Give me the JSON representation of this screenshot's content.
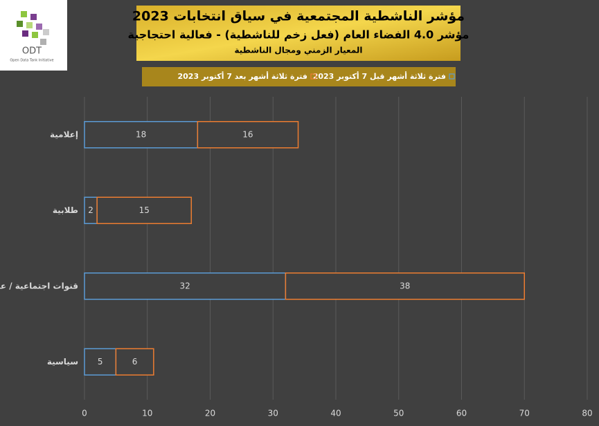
{
  "logo": {
    "name": "ODT",
    "tagline": "Open Data Tank Initiative"
  },
  "chart_data": {
    "type": "stacked-barh",
    "title": "مؤشر الناشطية المجتمعية في سياق انتخابات 2023",
    "subtitle": [
      "مؤشر 4.0 الفضاء العام (فعل زخم للناشطية) - فعالية احتجاجية",
      "المعيار الزمني ومجال الناشطية"
    ],
    "categories": [
      "إعلامية",
      "طلابية",
      "قنوات اجتماعية / عمالية",
      "سياسية"
    ],
    "series": [
      {
        "name": "فترة ثلاثة أشهر قبل 7 أكتوبر 2023",
        "color": "#5b9bd5",
        "values": [
          18,
          2,
          32,
          5
        ]
      },
      {
        "name": "فترة ثلاثة أشهر بعد 7 أكتوبر 2023",
        "color": "#ed7d31",
        "values": [
          16,
          15,
          38,
          6
        ]
      }
    ],
    "xlim": [
      0,
      80
    ],
    "xticks": [
      0,
      10,
      20,
      30,
      40,
      50,
      60,
      70,
      80
    ],
    "grid": true
  }
}
